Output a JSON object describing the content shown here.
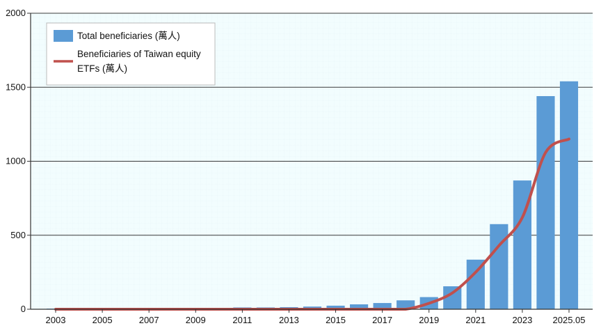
{
  "chart_data": {
    "type": "bar",
    "categories": [
      "2003",
      "2004",
      "2005",
      "2006",
      "2007",
      "2008",
      "2009",
      "2010",
      "2011",
      "2012",
      "2013",
      "2014",
      "2015",
      "2016",
      "2017",
      "2018",
      "2019",
      "2020",
      "2021",
      "2022",
      "2023",
      "2024",
      "2025.05"
    ],
    "x_tick_labels": [
      "2003",
      "2005",
      "2007",
      "2009",
      "2011",
      "2013",
      "2015",
      "2017",
      "2019",
      "2021",
      "2023",
      "2025.05"
    ],
    "y_tick_labels": [
      "0",
      "500",
      "1000",
      "1500",
      "2000"
    ],
    "ylim": [
      0,
      2000
    ],
    "grid": true,
    "legend_position": "top-left",
    "series": [
      {
        "name": "Total  beneficiaries (萬人)",
        "type": "bar",
        "color": "#5b9bd5",
        "values": [
          4,
          4,
          4,
          5,
          5,
          5,
          6,
          7,
          12,
          12,
          14,
          18,
          24,
          33,
          42,
          60,
          82,
          155,
          335,
          575,
          870,
          1440,
          1540
        ]
      },
      {
        "name": "Beneficiaries of Taiwan equity ETFs (萬人)",
        "type": "line",
        "color": "#c0504d",
        "values": [
          0,
          0,
          0,
          0,
          0,
          0,
          0,
          0,
          0,
          0,
          0,
          0,
          0,
          0,
          0,
          0,
          40,
          110,
          250,
          430,
          620,
          1060,
          1150
        ]
      }
    ]
  },
  "legend": {
    "items": [
      {
        "label_line1": "Total  beneficiaries (萬人)",
        "label_line2": ""
      },
      {
        "label_line1": "Beneficiaries of Taiwan equity",
        "label_line2": "ETFs (萬人)"
      }
    ]
  }
}
